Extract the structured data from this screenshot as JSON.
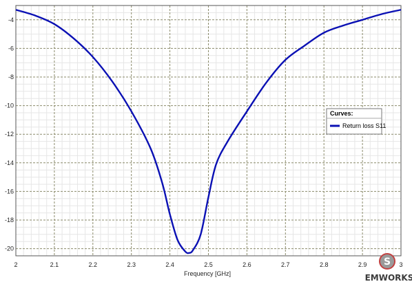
{
  "chart_data": {
    "type": "line",
    "title": "",
    "xlabel": "Frequency [GHz]",
    "ylabel": "",
    "xlim": [
      2.0,
      3.0
    ],
    "ylim": [
      -20.5,
      -3.0
    ],
    "x_ticks": [
      "2",
      "2.1",
      "2.2",
      "2.3",
      "2.4",
      "2.5",
      "2.6",
      "2.7",
      "2.8",
      "2.9",
      "3"
    ],
    "y_ticks": [
      "-4",
      "-6",
      "-8",
      "-10",
      "-12",
      "-14",
      "-16",
      "-18",
      "-20"
    ],
    "grid": true,
    "legend": {
      "title": "Curves:",
      "placement": "right"
    },
    "series": [
      {
        "name": "Return loss S11",
        "color": "#0a10b4",
        "x": [
          2.0,
          2.05,
          2.1,
          2.15,
          2.2,
          2.25,
          2.3,
          2.35,
          2.38,
          2.4,
          2.42,
          2.44,
          2.45,
          2.46,
          2.48,
          2.5,
          2.52,
          2.55,
          2.6,
          2.65,
          2.7,
          2.75,
          2.8,
          2.85,
          2.9,
          2.95,
          3.0
        ],
        "y": [
          -3.3,
          -3.7,
          -4.3,
          -5.3,
          -6.6,
          -8.3,
          -10.4,
          -13.0,
          -15.4,
          -17.6,
          -19.4,
          -20.2,
          -20.3,
          -20.1,
          -19.0,
          -16.4,
          -14.1,
          -12.5,
          -10.4,
          -8.4,
          -6.8,
          -5.8,
          -4.9,
          -4.4,
          -4.0,
          -3.6,
          -3.3
        ]
      }
    ]
  },
  "logo": {
    "text": "EMWORKS",
    "icon": "emworks-s-logo-icon"
  }
}
